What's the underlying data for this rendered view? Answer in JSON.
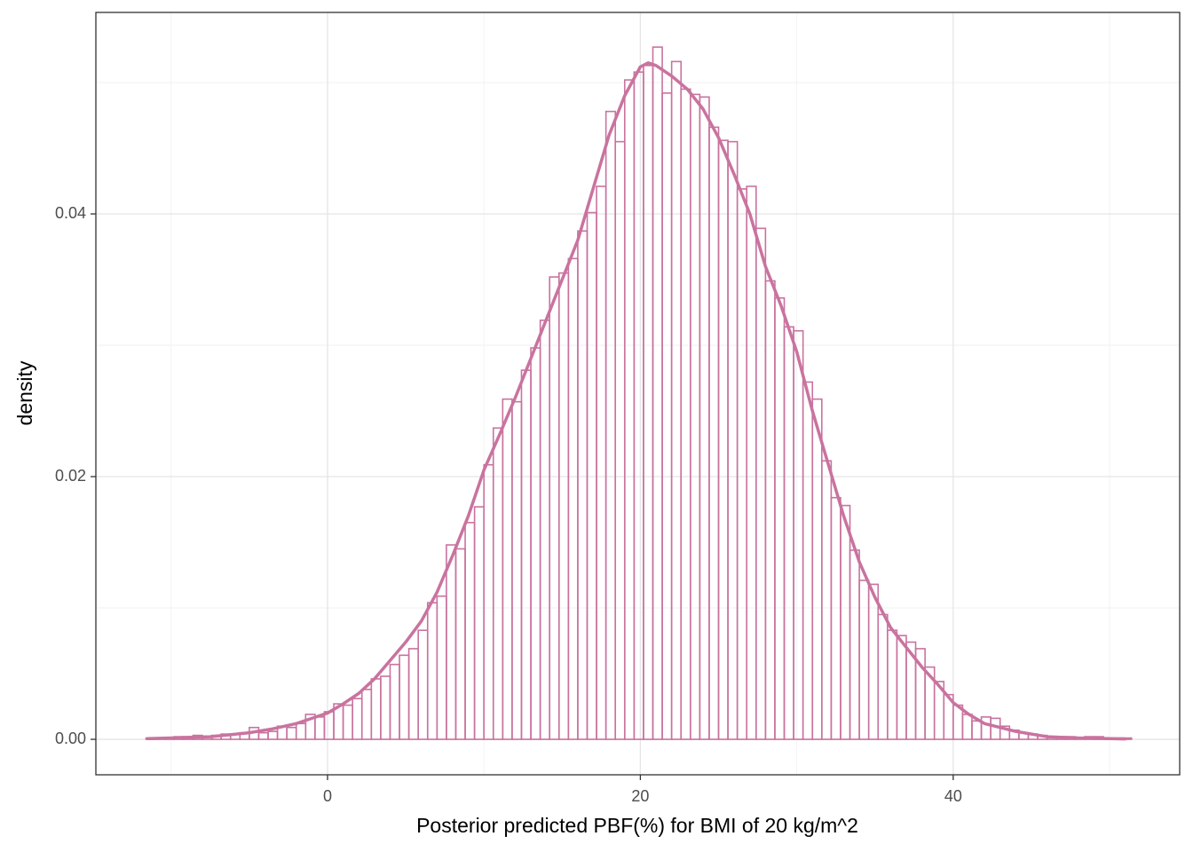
{
  "chart_data": {
    "type": "histogram",
    "xlabel": "Posterior predicted PBF(%) for BMI of 20 kg/m^2",
    "ylabel": "density",
    "color": "#c9739f",
    "grid": true,
    "xlim": [
      -14.81,
      54.48
    ],
    "ylim": [
      -0.0027,
      0.05534
    ],
    "xticks": [
      0,
      20,
      40
    ],
    "yticks": [
      {
        "value": 0,
        "label": "0.00"
      },
      {
        "value": 0.02,
        "label": "0.02"
      },
      {
        "value": 0.04,
        "label": "0.04"
      }
    ],
    "x_minor_grid": [
      -10,
      10,
      30,
      50
    ],
    "y_minor_grid": [
      0.01,
      0.03,
      0.05
    ],
    "bins": [
      -11.6,
      -11,
      -10.4,
      -9.8,
      -9.2,
      -8.6,
      -8,
      -7.4,
      -6.8,
      -6.2,
      -5.6,
      -5,
      -4.4,
      -3.8,
      -3.2,
      -2.6,
      -2,
      -1.4,
      -0.8,
      -0.2,
      0.4,
      1,
      1.6,
      2.2,
      2.8,
      3.4,
      4,
      4.6,
      5.2,
      5.8,
      6.4,
      7,
      7.6,
      8.2,
      8.8,
      9.4,
      10,
      10.6,
      11.2,
      11.8,
      12.4,
      13,
      13.6,
      14.2,
      14.8,
      15.4,
      16,
      16.6,
      17.2,
      17.8,
      18.4,
      19,
      19.6,
      20.2,
      20.8,
      21.4,
      22,
      22.6,
      23.2,
      23.8,
      24.4,
      25,
      25.6,
      26.2,
      26.8,
      27.4,
      28,
      28.6,
      29.2,
      29.8,
      30.4,
      31,
      31.6,
      32.2,
      32.8,
      33.4,
      34,
      34.6,
      35.2,
      35.8,
      36.4,
      37,
      37.6,
      38.2,
      38.8,
      39.4,
      40,
      40.6,
      41.2,
      41.8,
      42.4,
      43,
      43.6,
      44.2,
      44.8,
      45.4,
      46,
      46.6,
      47.2,
      47.8,
      48.4,
      49,
      49.6,
      50.2,
      50.8,
      51.4
    ],
    "values": [
      0.0001,
      0.0001,
      0.0001,
      0.0002,
      0.0002,
      0.0003,
      0.0002,
      0.0003,
      0.0004,
      0.0004,
      0.0005,
      0.0009,
      0.0005,
      0.0006,
      0.001,
      0.0009,
      0.0012,
      0.0019,
      0.0017,
      0.0021,
      0.0027,
      0.0026,
      0.0031,
      0.0038,
      0.0046,
      0.0048,
      0.0057,
      0.0064,
      0.0069,
      0.0083,
      0.0104,
      0.0109,
      0.0148,
      0.0145,
      0.0165,
      0.0177,
      0.0209,
      0.0237,
      0.0259,
      0.0257,
      0.0281,
      0.0298,
      0.0319,
      0.0352,
      0.0355,
      0.0366,
      0.0387,
      0.0401,
      0.0421,
      0.0478,
      0.0455,
      0.0502,
      0.0508,
      0.0513,
      0.0527,
      0.0492,
      0.0516,
      0.0495,
      0.0491,
      0.0489,
      0.0466,
      0.0456,
      0.0455,
      0.0419,
      0.0421,
      0.0389,
      0.0349,
      0.0336,
      0.0314,
      0.0311,
      0.0272,
      0.0259,
      0.0212,
      0.0184,
      0.0178,
      0.0144,
      0.0121,
      0.0118,
      0.0095,
      0.0083,
      0.0079,
      0.0074,
      0.0069,
      0.0055,
      0.0044,
      0.0034,
      0.0026,
      0.0019,
      0.0014,
      0.0017,
      0.0016,
      0.001,
      0.0007,
      0.0005,
      0.0004,
      0.0003,
      0.0002,
      0.0002,
      0.0002,
      0.0001,
      0.0002,
      0.0002,
      0.0001,
      0.0001,
      0.0001
    ],
    "density_curve": {
      "x": [
        -11.5,
        -10,
        -7.5,
        -5,
        -3.5,
        -2,
        -1,
        0,
        1,
        2,
        3,
        4,
        5,
        6,
        7,
        8,
        9,
        10,
        11,
        12,
        13,
        14,
        15,
        16,
        17,
        18,
        19,
        20,
        20.5,
        21,
        22,
        23,
        24,
        25,
        26,
        27,
        28,
        29,
        30,
        31,
        32,
        33,
        34,
        35,
        36,
        37,
        38,
        39,
        40,
        41,
        42,
        43,
        44,
        46,
        48,
        51
      ],
      "values": [
        5e-05,
        0.0001,
        0.0002,
        0.0005,
        0.0008,
        0.0012,
        0.0016,
        0.002,
        0.0027,
        0.0035,
        0.0046,
        0.006,
        0.0074,
        0.009,
        0.0112,
        0.014,
        0.017,
        0.0205,
        0.0232,
        0.026,
        0.029,
        0.032,
        0.035,
        0.038,
        0.042,
        0.046,
        0.049,
        0.0512,
        0.0515,
        0.0513,
        0.0505,
        0.0495,
        0.048,
        0.0458,
        0.043,
        0.04,
        0.036,
        0.033,
        0.0295,
        0.025,
        0.021,
        0.017,
        0.0135,
        0.0108,
        0.0085,
        0.007,
        0.0055,
        0.0042,
        0.0028,
        0.0019,
        0.0012,
        0.0009,
        0.0006,
        0.0002,
        0.0001,
        3e-05
      ]
    }
  }
}
